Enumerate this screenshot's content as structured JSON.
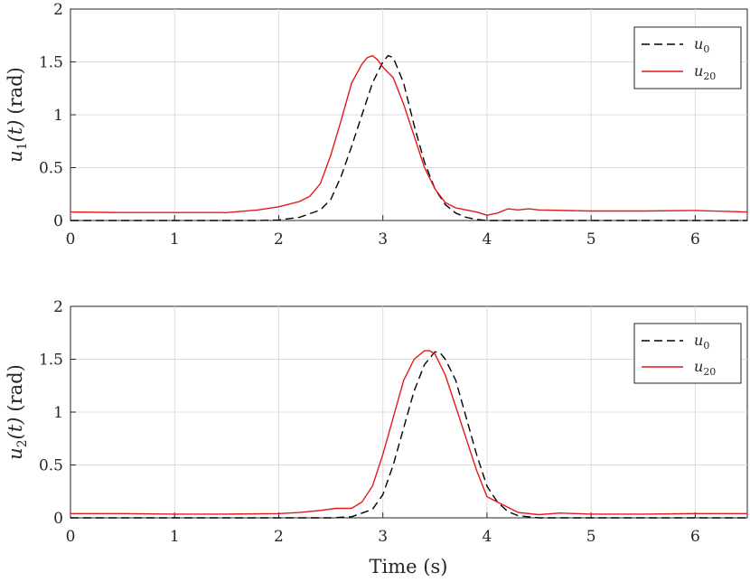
{
  "chart_data": [
    {
      "type": "line",
      "ylabel_main": "u",
      "ylabel_sub": "1",
      "ylabel_arg": "(t)",
      "ylabel_unit": "(rad)",
      "xlim": [
        0,
        6.5
      ],
      "ylim": [
        0,
        2
      ],
      "xticks": [
        "0",
        "1",
        "2",
        "3",
        "4",
        "5",
        "6"
      ],
      "yticks": [
        "0",
        "0.5",
        "1",
        "1.5",
        "2"
      ],
      "grid": true,
      "legend_position": "top-right",
      "series": [
        {
          "name_main": "u",
          "name_sub": "0",
          "color": "#000000",
          "dash": "dashed",
          "x": [
            0,
            1,
            1.8,
            2.0,
            2.2,
            2.4,
            2.5,
            2.6,
            2.7,
            2.8,
            2.9,
            3.0,
            3.05,
            3.1,
            3.2,
            3.3,
            3.4,
            3.5,
            3.6,
            3.7,
            3.8,
            3.9,
            4.0,
            6.5
          ],
          "y": [
            0,
            0,
            0,
            0.005,
            0.03,
            0.1,
            0.2,
            0.42,
            0.7,
            1.0,
            1.3,
            1.5,
            1.56,
            1.54,
            1.3,
            0.9,
            0.55,
            0.3,
            0.15,
            0.07,
            0.03,
            0.01,
            0,
            0
          ]
        },
        {
          "name_main": "u",
          "name_sub": "20",
          "color": "#e31a1c",
          "dash": "solid",
          "x": [
            0,
            0.5,
            1.0,
            1.5,
            1.8,
            2.0,
            2.2,
            2.3,
            2.4,
            2.5,
            2.6,
            2.7,
            2.8,
            2.85,
            2.9,
            2.95,
            3.0,
            3.05,
            3.1,
            3.2,
            3.3,
            3.4,
            3.5,
            3.6,
            3.7,
            3.8,
            3.9,
            4.0,
            4.1,
            4.2,
            4.3,
            4.4,
            4.5,
            5.0,
            5.5,
            6.0,
            6.5
          ],
          "y": [
            0.08,
            0.075,
            0.075,
            0.075,
            0.1,
            0.13,
            0.18,
            0.23,
            0.35,
            0.62,
            0.95,
            1.3,
            1.48,
            1.54,
            1.56,
            1.52,
            1.45,
            1.4,
            1.35,
            1.1,
            0.8,
            0.5,
            0.3,
            0.17,
            0.12,
            0.1,
            0.08,
            0.05,
            0.07,
            0.11,
            0.1,
            0.11,
            0.1,
            0.09,
            0.09,
            0.095,
            0.08
          ]
        }
      ]
    },
    {
      "type": "line",
      "ylabel_main": "u",
      "ylabel_sub": "2",
      "ylabel_arg": "(t)",
      "ylabel_unit": "(rad)",
      "xlabel": "Time (s)",
      "xlim": [
        0,
        6.5
      ],
      "ylim": [
        0,
        2
      ],
      "xticks": [
        "0",
        "1",
        "2",
        "3",
        "4",
        "5",
        "6"
      ],
      "yticks": [
        "0",
        "0.5",
        "1",
        "1.5",
        "2"
      ],
      "grid": true,
      "legend_position": "top-right",
      "series": [
        {
          "name_main": "u",
          "name_sub": "0",
          "color": "#000000",
          "dash": "dashed",
          "x": [
            0,
            2.5,
            2.7,
            2.9,
            3.0,
            3.1,
            3.2,
            3.3,
            3.4,
            3.5,
            3.55,
            3.6,
            3.7,
            3.8,
            3.9,
            4.0,
            4.1,
            4.2,
            4.3,
            4.5,
            6.5
          ],
          "y": [
            0,
            0,
            0.01,
            0.08,
            0.22,
            0.5,
            0.85,
            1.2,
            1.45,
            1.57,
            1.56,
            1.5,
            1.3,
            0.95,
            0.6,
            0.3,
            0.15,
            0.06,
            0.02,
            0,
            0
          ]
        },
        {
          "name_main": "u",
          "name_sub": "20",
          "color": "#e31a1c",
          "dash": "solid",
          "x": [
            0,
            0.5,
            1.0,
            1.5,
            2.0,
            2.2,
            2.4,
            2.55,
            2.7,
            2.8,
            2.9,
            3.0,
            3.1,
            3.2,
            3.3,
            3.4,
            3.45,
            3.5,
            3.6,
            3.7,
            3.8,
            3.9,
            4.0,
            4.1,
            4.2,
            4.3,
            4.5,
            4.7,
            5.0,
            5.5,
            6.0,
            6.5
          ],
          "y": [
            0.04,
            0.04,
            0.035,
            0.035,
            0.04,
            0.05,
            0.07,
            0.09,
            0.09,
            0.15,
            0.3,
            0.6,
            0.95,
            1.3,
            1.5,
            1.58,
            1.58,
            1.55,
            1.35,
            1.05,
            0.75,
            0.45,
            0.2,
            0.15,
            0.1,
            0.05,
            0.03,
            0.045,
            0.035,
            0.035,
            0.04,
            0.04
          ]
        }
      ]
    }
  ]
}
